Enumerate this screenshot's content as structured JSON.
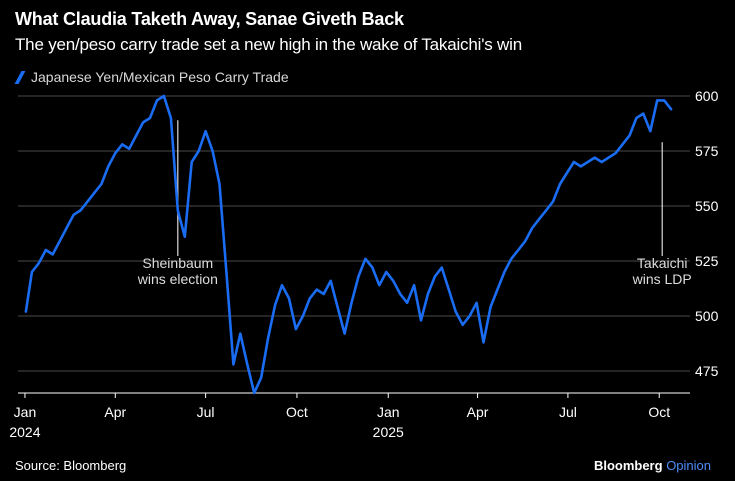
{
  "title": "What Claudia Taketh Away, Sanae Giveth Back",
  "subtitle": "The yen/peso carry trade set a new high in the wake of Takaichi's win",
  "legend": {
    "label": "Japanese Yen/Mexican Peso Carry Trade",
    "color": "#1a6cf2"
  },
  "footer": {
    "source": "Source: Bloomberg",
    "brand_main": "Bloomberg",
    "brand_accent": "Opinion"
  },
  "colors": {
    "background": "#000000",
    "line": "#1a6cf2",
    "grid": "#4a4a4a",
    "text": "#ffffff",
    "annotation": "#dddddd"
  },
  "chart_data": {
    "type": "line",
    "series": [
      {
        "name": "Japanese Yen/Mexican Peso Carry Trade",
        "x": [
          "2024-01-02",
          "2024-01-08",
          "2024-01-15",
          "2024-01-22",
          "2024-01-29",
          "2024-02-05",
          "2024-02-12",
          "2024-02-19",
          "2024-02-26",
          "2024-03-04",
          "2024-03-11",
          "2024-03-18",
          "2024-03-25",
          "2024-04-01",
          "2024-04-08",
          "2024-04-15",
          "2024-04-22",
          "2024-04-29",
          "2024-05-06",
          "2024-05-13",
          "2024-05-20",
          "2024-05-27",
          "2024-06-03",
          "2024-06-10",
          "2024-06-17",
          "2024-06-24",
          "2024-07-01",
          "2024-07-08",
          "2024-07-15",
          "2024-07-22",
          "2024-07-29",
          "2024-08-05",
          "2024-08-12",
          "2024-08-19",
          "2024-08-26",
          "2024-09-02",
          "2024-09-09",
          "2024-09-16",
          "2024-09-23",
          "2024-09-30",
          "2024-10-07",
          "2024-10-14",
          "2024-10-21",
          "2024-10-28",
          "2024-11-04",
          "2024-11-11",
          "2024-11-18",
          "2024-11-25",
          "2024-12-02",
          "2024-12-09",
          "2024-12-16",
          "2024-12-23",
          "2024-12-30",
          "2025-01-06",
          "2025-01-13",
          "2025-01-20",
          "2025-01-27",
          "2025-02-03",
          "2025-02-10",
          "2025-02-17",
          "2025-02-24",
          "2025-03-03",
          "2025-03-10",
          "2025-03-17",
          "2025-03-24",
          "2025-03-31",
          "2025-04-07",
          "2025-04-14",
          "2025-04-21",
          "2025-04-28",
          "2025-05-05",
          "2025-05-12",
          "2025-05-19",
          "2025-05-26",
          "2025-06-02",
          "2025-06-09",
          "2025-06-16",
          "2025-06-23",
          "2025-06-30",
          "2025-07-07",
          "2025-07-14",
          "2025-07-21",
          "2025-07-28",
          "2025-08-04",
          "2025-08-11",
          "2025-08-18",
          "2025-08-25",
          "2025-09-01",
          "2025-09-08",
          "2025-09-15",
          "2025-09-22",
          "2025-09-29",
          "2025-10-06",
          "2025-10-13"
        ],
        "values": [
          502,
          520,
          524,
          530,
          528,
          534,
          540,
          546,
          548,
          552,
          556,
          560,
          568,
          574,
          578,
          576,
          582,
          588,
          590,
          598,
          600,
          590,
          548,
          536,
          570,
          575,
          584,
          575,
          560,
          520,
          478,
          492,
          478,
          465,
          472,
          490,
          505,
          514,
          508,
          494,
          500,
          508,
          512,
          510,
          516,
          504,
          492,
          506,
          518,
          526,
          522,
          514,
          520,
          516,
          510,
          506,
          514,
          498,
          510,
          518,
          522,
          512,
          502,
          496,
          500,
          506,
          488,
          504,
          512,
          520,
          526,
          530,
          534,
          540,
          544,
          548,
          552,
          560,
          565,
          570,
          568,
          570,
          572,
          570,
          572,
          574,
          578,
          582,
          590,
          592,
          584,
          598,
          598,
          594
        ],
        "ylim": [
          465,
          605
        ]
      }
    ],
    "ylim": [
      465,
      605
    ],
    "y_ticks": [
      "600",
      "575",
      "550",
      "525",
      "500",
      "475"
    ],
    "y_tick_values": [
      600,
      575,
      550,
      525,
      500,
      475
    ],
    "x_ticks": [
      {
        "label": "Jan",
        "year": "2024",
        "date": "2024-01-01"
      },
      {
        "label": "Apr",
        "year": "",
        "date": "2024-04-01"
      },
      {
        "label": "Jul",
        "year": "",
        "date": "2024-07-01"
      },
      {
        "label": "Oct",
        "year": "",
        "date": "2024-10-01"
      },
      {
        "label": "Jan",
        "year": "2025",
        "date": "2025-01-01"
      },
      {
        "label": "Apr",
        "year": "",
        "date": "2025-04-01"
      },
      {
        "label": "Jul",
        "year": "",
        "date": "2025-07-01"
      },
      {
        "label": "Oct",
        "year": "",
        "date": "2025-10-01"
      }
    ],
    "x_range": [
      "2023-12-25",
      "2025-11-01"
    ],
    "grid": "horizontal",
    "legend_position": "top-left",
    "annotations": [
      {
        "lines": [
          "Sheinbaum",
          "wins election"
        ],
        "date": "2024-06-03",
        "value": 589,
        "label_value": 520
      },
      {
        "lines": [
          "Takaichi",
          "wins LDP"
        ],
        "date": "2025-10-04",
        "value": 579,
        "label_value": 520
      }
    ]
  }
}
